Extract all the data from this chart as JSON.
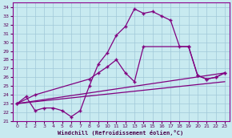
{
  "bg_color": "#c8eaf0",
  "grid_color": "#a0c8d8",
  "line_color": "#800080",
  "xlabel": "Windchill (Refroidissement éolien,°C)",
  "ylim": [
    21,
    34.5
  ],
  "xlim": [
    -0.5,
    23.5
  ],
  "yticks": [
    21,
    22,
    23,
    24,
    25,
    26,
    27,
    28,
    29,
    30,
    31,
    32,
    33,
    34
  ],
  "xticks": [
    0,
    1,
    2,
    3,
    4,
    5,
    6,
    7,
    8,
    9,
    10,
    11,
    12,
    13,
    14,
    15,
    16,
    17,
    18,
    19,
    20,
    21,
    22,
    23
  ],
  "line1_x": [
    0,
    1,
    2,
    3,
    4,
    5,
    6,
    7,
    8,
    9,
    10,
    11,
    12,
    13,
    14,
    15,
    16,
    17,
    18,
    19,
    20,
    21,
    22,
    23
  ],
  "line1_y": [
    23.0,
    23.8,
    22.2,
    22.5,
    22.5,
    22.2,
    21.5,
    22.2,
    25.0,
    27.5,
    28.8,
    30.8,
    31.8,
    33.8,
    33.3,
    33.5,
    33.0,
    32.5,
    29.5,
    29.5,
    26.2,
    25.8,
    26.0,
    26.5
  ],
  "line2_x": [
    0,
    2,
    8,
    9,
    10,
    11,
    12,
    13,
    14,
    19,
    20,
    21,
    22,
    23
  ],
  "line2_y": [
    23.0,
    24.0,
    25.8,
    26.5,
    27.2,
    28.0,
    26.5,
    25.5,
    29.5,
    29.5,
    26.2,
    25.8,
    26.0,
    26.5
  ],
  "line3_x": [
    0,
    23
  ],
  "line3_y": [
    23.0,
    25.5
  ],
  "line4_x": [
    0,
    23
  ],
  "line4_y": [
    23.0,
    26.5
  ]
}
